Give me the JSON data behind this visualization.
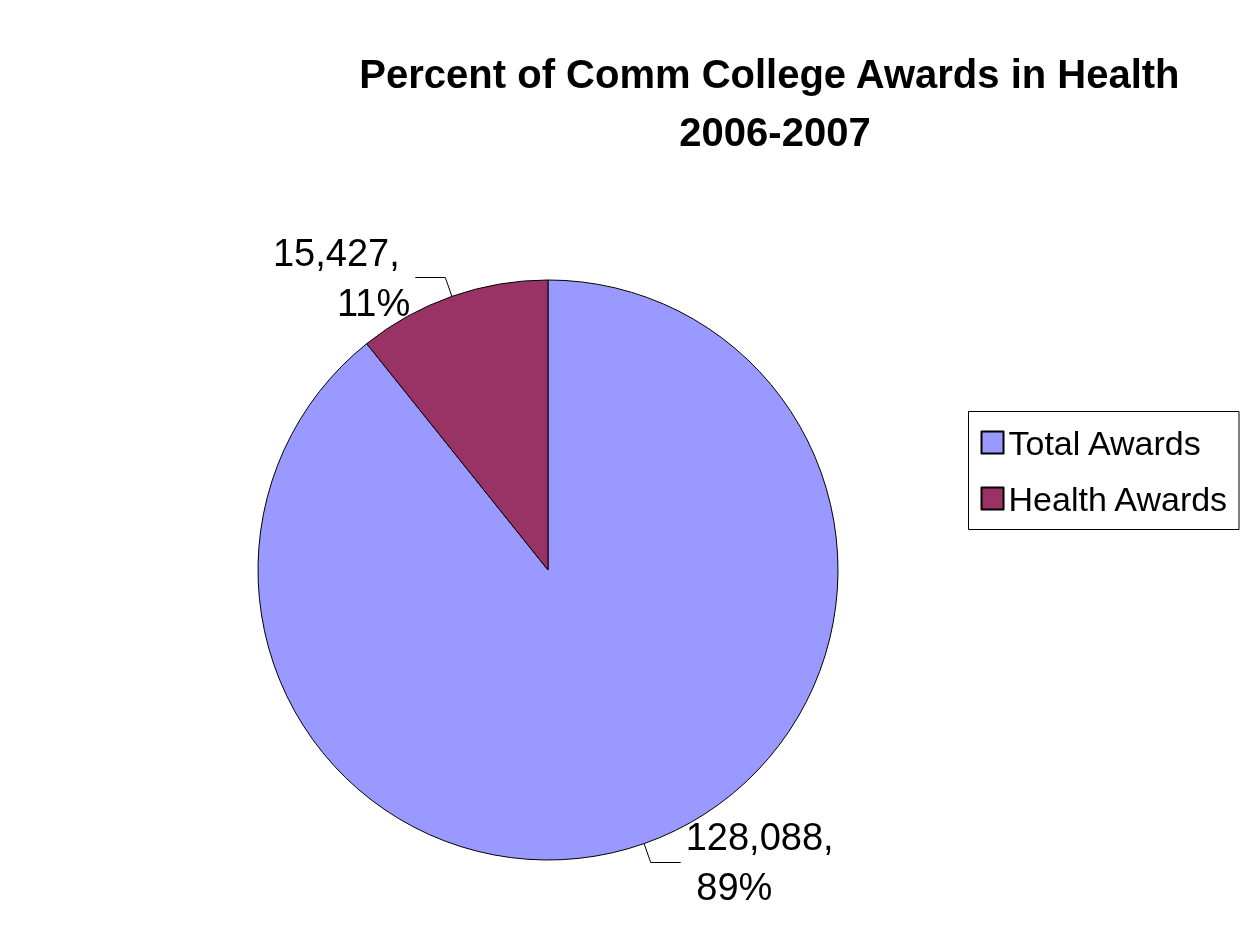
{
  "chart_data": {
    "type": "pie",
    "title": "Percent of Comm College Awards in Health 2006-2007",
    "categories": [
      "Total Awards",
      "Health Awards"
    ],
    "values": [
      128088,
      15427
    ],
    "colors": [
      "#9999ff",
      "#993366"
    ],
    "value_labels": [
      "128,088, 89%",
      "15,427, 11%"
    ],
    "legend": "right"
  }
}
